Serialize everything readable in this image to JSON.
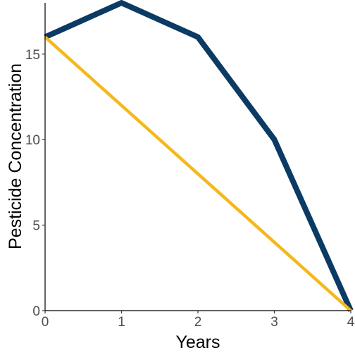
{
  "chart_data": {
    "type": "line",
    "title": "",
    "xlabel": "Years",
    "ylabel": "Pesticide Concentration",
    "xlim": [
      0,
      4
    ],
    "ylim": [
      0,
      18
    ],
    "x_ticks": [
      0,
      1,
      2,
      3,
      4
    ],
    "y_ticks": [
      0,
      5,
      10,
      15
    ],
    "grid": false,
    "legend": "none",
    "series": [
      {
        "x": [
          0,
          1,
          2,
          3,
          4
        ],
        "values": [
          16,
          18,
          16,
          10,
          0
        ],
        "color": "#0b3a63",
        "style": "thick"
      },
      {
        "x": [
          0,
          4
        ],
        "values": [
          16,
          0
        ],
        "color": "#f5b81c",
        "style": "medium"
      }
    ]
  }
}
